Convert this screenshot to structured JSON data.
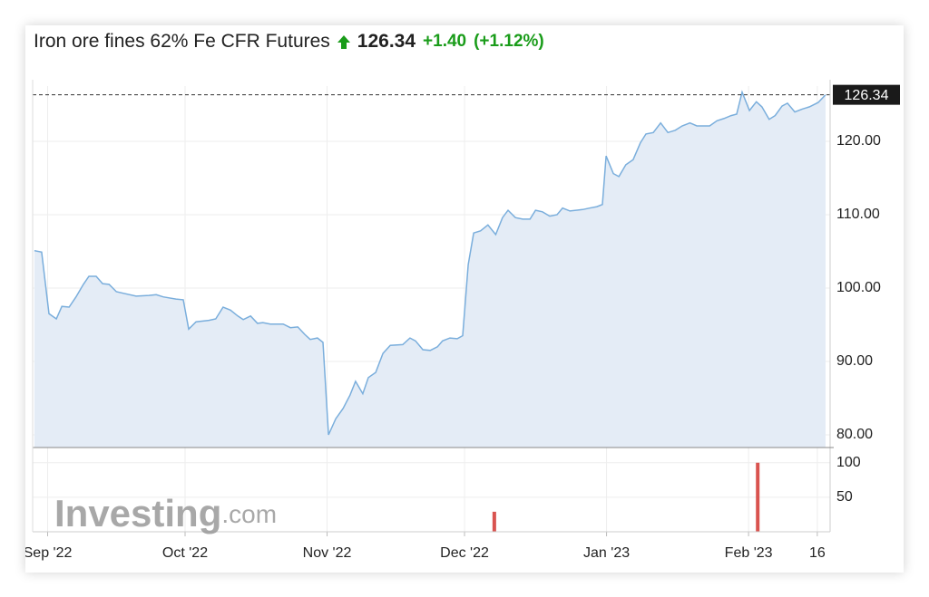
{
  "header": {
    "title": "Iron ore fines 62% Fe CFR Futures",
    "price": "126.34",
    "change": "+1.40",
    "change_pct": "(+1.12%)"
  },
  "watermark": {
    "brand": "Investing",
    "suffix": ".com"
  },
  "chart_data": [
    {
      "type": "area",
      "color": "#7aaedc",
      "fill": "#e4ecf6",
      "x": [
        -2.9,
        -1.3,
        0.3,
        1.9,
        3.1,
        4.7,
        6.2,
        7.8,
        9.0,
        10.6,
        12.0,
        13.4,
        15.0,
        16.5,
        19.3,
        22.1,
        23.7,
        25.2,
        28.0,
        29.6,
        30.8,
        32.4,
        35.2,
        36.7,
        38.3,
        39.9,
        41.5,
        42.7,
        44.3,
        45.8,
        47.0,
        48.6,
        51.4,
        53.0,
        54.6,
        56.1,
        57.3,
        58.9,
        60.1,
        61.3,
        62.9,
        64.5,
        66.0,
        67.2,
        68.8,
        70.0,
        71.6,
        73.2,
        74.8,
        77.5,
        79.1,
        80.3,
        81.9,
        83.5,
        85.1,
        86.2,
        87.8,
        89.4,
        90.6,
        91.8,
        93.0,
        94.5,
        96.1,
        97.8,
        99.3,
        100.5,
        102.1,
        103.7,
        105.3,
        106.5,
        108.0,
        109.6,
        111.2,
        112.4,
        114.0,
        116.8,
        118.3,
        119.9,
        121.1,
        121.9,
        123.5,
        124.7,
        126.2,
        127.8,
        129.4,
        130.6,
        132.2,
        133.8,
        135.4,
        137.0,
        138.5,
        140.2,
        141.7,
        144.5,
        146.1,
        147.6,
        149.2,
        150.4,
        151.6,
        153.2,
        154.7,
        155.9,
        157.5,
        158.8,
        160.3,
        161.5,
        163.1,
        164.7,
        166.3,
        168.2,
        169.8
      ],
      "values": [
        105.1,
        104.9,
        96.5,
        95.8,
        97.5,
        97.4,
        98.8,
        100.5,
        101.6,
        101.6,
        100.6,
        100.5,
        99.5,
        99.3,
        98.9,
        99.0,
        99.1,
        98.8,
        98.5,
        98.4,
        94.4,
        95.4,
        95.6,
        95.8,
        97.4,
        97.0,
        96.2,
        95.7,
        96.2,
        95.2,
        95.3,
        95.1,
        95.1,
        94.6,
        94.7,
        93.7,
        93.0,
        93.2,
        92.6,
        80.0,
        82.2,
        83.6,
        85.4,
        87.3,
        85.6,
        87.8,
        88.5,
        91.1,
        92.2,
        92.3,
        93.2,
        92.8,
        91.6,
        91.5,
        92.0,
        92.8,
        93.2,
        93.1,
        93.5,
        103.2,
        107.5,
        107.8,
        108.6,
        107.3,
        109.6,
        110.6,
        109.6,
        109.4,
        109.4,
        110.6,
        110.4,
        109.8,
        110.0,
        110.9,
        110.5,
        110.7,
        110.9,
        111.1,
        111.4,
        118.0,
        115.6,
        115.2,
        116.8,
        117.5,
        119.8,
        121.0,
        121.2,
        122.5,
        121.2,
        121.5,
        122.1,
        122.5,
        122.1,
        122.1,
        122.8,
        123.1,
        123.5,
        123.7,
        126.7,
        124.2,
        125.4,
        124.7,
        123.0,
        123.5,
        124.8,
        125.2,
        124.0,
        124.4,
        124.7,
        125.3,
        126.34
      ],
      "xlim": [
        -3.27,
        170.8
      ],
      "ylim": [
        78.27,
        127.53
      ],
      "xticks": [
        0,
        30,
        61,
        91,
        122,
        153,
        168
      ],
      "yticks": [
        {
          "value": 80,
          "label": "80.00"
        },
        {
          "value": 90,
          "label": "90.00"
        },
        {
          "value": 100,
          "label": "100.00"
        },
        {
          "value": 110,
          "label": "110.00"
        },
        {
          "value": 120,
          "label": "120.00"
        }
      ],
      "grid": true
    },
    {
      "type": "bar",
      "color": "#d9534f",
      "x": [
        97.5,
        155
      ],
      "values": [
        29,
        100
      ],
      "xlim": [
        -3.27,
        170.8
      ],
      "ylim": [
        0,
        122
      ],
      "xticks": [
        {
          "value": 0,
          "label": "Sep '22"
        },
        {
          "value": 30,
          "label": "Oct '22"
        },
        {
          "value": 61,
          "label": "Nov '22"
        },
        {
          "value": 91,
          "label": "Dec '22"
        },
        {
          "value": 122,
          "label": "Jan '23"
        },
        {
          "value": 153,
          "label": "Feb '23"
        },
        {
          "value": 168,
          "label": "16"
        }
      ],
      "yticks": [
        50,
        100
      ],
      "grid": true
    }
  ]
}
